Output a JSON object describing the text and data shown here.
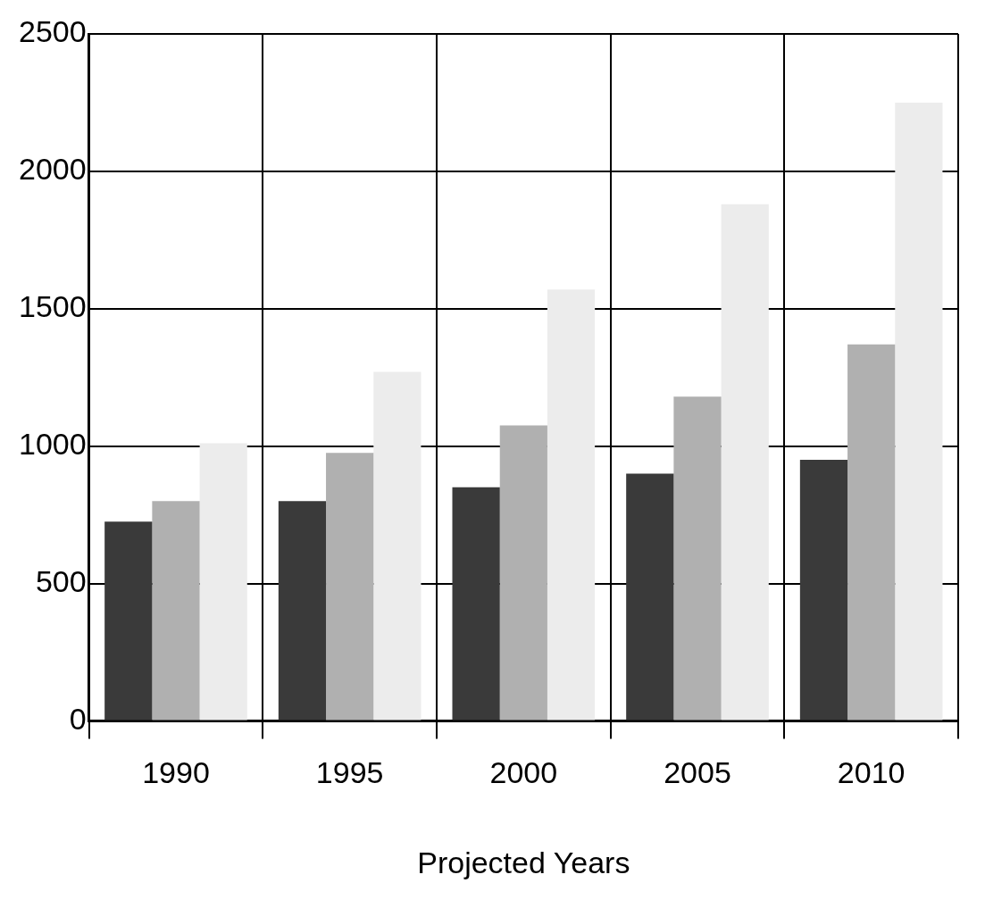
{
  "chart_data": {
    "type": "bar",
    "xlabel": "Projected Years",
    "categories": [
      "1990",
      "1995",
      "2000",
      "2005",
      "2010"
    ],
    "series": [
      {
        "color": "#3a3a3a",
        "values": [
          725,
          800,
          850,
          900,
          950
        ]
      },
      {
        "color": "#b0b0b0",
        "values": [
          800,
          975,
          1075,
          1180,
          1370
        ]
      },
      {
        "color": "#ececec",
        "values": [
          1010,
          1270,
          1570,
          1880,
          2250
        ]
      }
    ],
    "ylim": [
      0,
      2500
    ],
    "yticks": [
      0,
      500,
      1000,
      1500,
      2000,
      2500
    ],
    "grid": true
  }
}
